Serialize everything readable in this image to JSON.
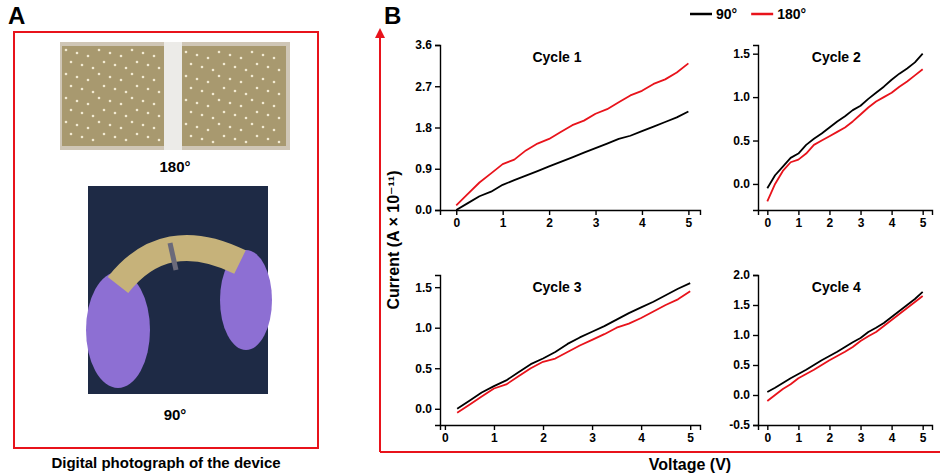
{
  "figure": {
    "panel_a_label": "A",
    "panel_b_label": "B",
    "photo_labels": [
      "180°",
      "90°"
    ],
    "caption": "Digital photograph of the device",
    "x_label": "Voltage (V)",
    "y_label": "Current (A × 10⁻¹¹)"
  },
  "chart_data": [
    {
      "type": "line",
      "title": "Cycle 1",
      "x": [
        0,
        0.25,
        0.5,
        0.75,
        1,
        1.25,
        1.5,
        1.75,
        2,
        2.25,
        2.5,
        2.75,
        3,
        3.25,
        3.5,
        3.75,
        4,
        4.25,
        4.5,
        4.75,
        5
      ],
      "xlim": [
        -0.35,
        5.25
      ],
      "xticks": [
        0,
        1,
        2,
        3,
        4,
        5
      ],
      "ylim": [
        0,
        3.6
      ],
      "yticks": [
        {
          "value": 0,
          "label": "0.0"
        },
        0.9,
        1.8,
        2.7,
        3.6
      ],
      "legend": "top",
      "series": [
        {
          "name": "90°",
          "color": "#000000",
          "values": [
            0.0,
            0.15,
            0.3,
            0.4,
            0.55,
            0.65,
            0.75,
            0.85,
            0.95,
            1.05,
            1.15,
            1.25,
            1.35,
            1.45,
            1.55,
            1.62,
            1.72,
            1.82,
            1.92,
            2.02,
            2.15
          ]
        },
        {
          "name": "180°",
          "color": "#e8131b",
          "values": [
            0.1,
            0.35,
            0.6,
            0.8,
            1.0,
            1.1,
            1.3,
            1.45,
            1.55,
            1.7,
            1.85,
            1.95,
            2.1,
            2.2,
            2.35,
            2.5,
            2.6,
            2.75,
            2.85,
            3.0,
            3.2
          ]
        }
      ]
    },
    {
      "type": "line",
      "title": "Cycle 2",
      "x": [
        0,
        0.25,
        0.5,
        0.75,
        1,
        1.25,
        1.5,
        1.75,
        2,
        2.25,
        2.5,
        2.75,
        3,
        3.25,
        3.5,
        3.75,
        4,
        4.25,
        4.5,
        4.75,
        5
      ],
      "xlim": [
        -0.3,
        5.3
      ],
      "xticks": [
        0,
        1,
        2,
        3,
        4,
        5
      ],
      "ylim": [
        -0.3,
        1.6
      ],
      "yticks": [
        {
          "value": 0,
          "label": "0.0"
        },
        0.5,
        {
          "value": 1,
          "label": "1.0"
        },
        1.5
      ],
      "series": [
        {
          "color": "#000000",
          "values": [
            -0.05,
            0.1,
            0.2,
            0.3,
            0.35,
            0.45,
            0.52,
            0.58,
            0.65,
            0.72,
            0.78,
            0.85,
            0.9,
            0.98,
            1.05,
            1.12,
            1.2,
            1.27,
            1.33,
            1.4,
            1.5
          ]
        },
        {
          "color": "#e8131b",
          "values": [
            -0.2,
            0.0,
            0.15,
            0.25,
            0.28,
            0.35,
            0.45,
            0.5,
            0.55,
            0.6,
            0.65,
            0.72,
            0.8,
            0.88,
            0.95,
            1.0,
            1.05,
            1.12,
            1.18,
            1.25,
            1.32
          ]
        }
      ]
    },
    {
      "type": "line",
      "title": "Cycle 3",
      "x": [
        0.25,
        0.5,
        0.75,
        1,
        1.25,
        1.5,
        1.75,
        2,
        2.25,
        2.5,
        2.75,
        3,
        3.25,
        3.5,
        3.75,
        4,
        4.25,
        4.5,
        4.75,
        5
      ],
      "xlim": [
        -0.1,
        5.2
      ],
      "xticks": [
        0,
        1,
        2,
        3,
        4,
        5
      ],
      "ylim": [
        -0.2,
        1.65
      ],
      "yticks": [
        {
          "value": 0,
          "label": "0.0"
        },
        0.5,
        {
          "value": 1,
          "label": "1.0"
        },
        1.5
      ],
      "series": [
        {
          "color": "#000000",
          "values": [
            0.0,
            0.1,
            0.2,
            0.28,
            0.35,
            0.45,
            0.55,
            0.62,
            0.7,
            0.8,
            0.88,
            0.95,
            1.02,
            1.1,
            1.18,
            1.25,
            1.32,
            1.4,
            1.48,
            1.55
          ]
        },
        {
          "color": "#e8131b",
          "values": [
            -0.05,
            0.05,
            0.15,
            0.25,
            0.3,
            0.4,
            0.5,
            0.58,
            0.62,
            0.7,
            0.78,
            0.85,
            0.92,
            1.0,
            1.05,
            1.12,
            1.2,
            1.28,
            1.35,
            1.45
          ]
        }
      ]
    },
    {
      "type": "line",
      "title": "Cycle 4",
      "x": [
        0,
        0.25,
        0.5,
        0.75,
        1,
        1.25,
        1.5,
        1.75,
        2,
        2.25,
        2.5,
        2.75,
        3,
        3.25,
        3.5,
        3.75,
        4,
        4.25,
        4.5,
        4.75,
        5
      ],
      "xlim": [
        -0.3,
        5.3
      ],
      "xticks": [
        0,
        1,
        2,
        3,
        4,
        5
      ],
      "ylim": [
        -0.5,
        2.0
      ],
      "yticks": [
        -0.5,
        {
          "value": 0,
          "label": "0.0"
        },
        0.5,
        {
          "value": 1,
          "label": "1.0"
        },
        1.5,
        {
          "value": 2,
          "label": "2.0"
        }
      ],
      "series": [
        {
          "color": "#000000",
          "values": [
            0.05,
            0.12,
            0.2,
            0.28,
            0.35,
            0.42,
            0.5,
            0.58,
            0.65,
            0.72,
            0.8,
            0.88,
            0.95,
            1.05,
            1.12,
            1.2,
            1.3,
            1.4,
            1.5,
            1.6,
            1.72
          ]
        },
        {
          "color": "#e8131b",
          "values": [
            -0.1,
            0.0,
            0.1,
            0.18,
            0.28,
            0.35,
            0.42,
            0.5,
            0.58,
            0.65,
            0.72,
            0.8,
            0.9,
            0.98,
            1.05,
            1.15,
            1.25,
            1.35,
            1.45,
            1.55,
            1.65
          ]
        }
      ]
    }
  ]
}
